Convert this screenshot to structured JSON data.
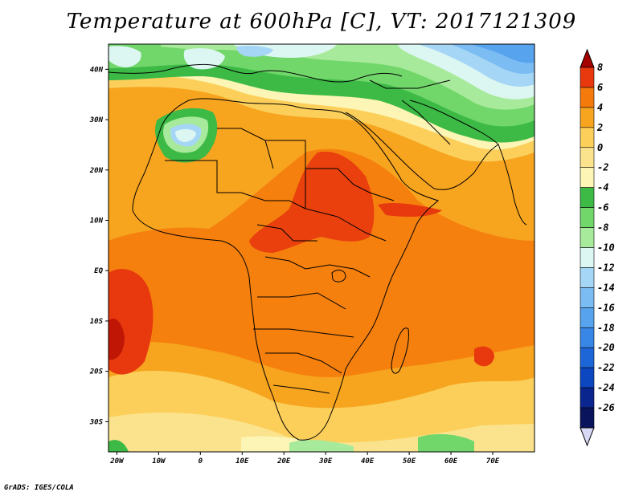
{
  "title": "Temperature at 600hPa [C], VT: 2017121309",
  "credit": "GrADS: IGES/COLA",
  "map": {
    "lon_labels": [
      "20W",
      "10W",
      "0",
      "10E",
      "20E",
      "30E",
      "40E",
      "50E",
      "60E",
      "70E"
    ],
    "lat_labels": [
      "40N",
      "30N",
      "20N",
      "10N",
      "EQ",
      "10S",
      "20S",
      "30S"
    ],
    "lon_range": [
      -22,
      80
    ],
    "lat_range": [
      -36,
      45
    ]
  },
  "colorbar": {
    "levels": [
      "8",
      "6",
      "4",
      "2",
      "0",
      "-2",
      "-4",
      "-6",
      "-8",
      "-10",
      "-12",
      "-14",
      "-16",
      "-18",
      "-20",
      "-22",
      "-24",
      "-26"
    ],
    "colors": [
      "#a40000",
      "#e8380e",
      "#f47a0c",
      "#f7a41f",
      "#fbcf5a",
      "#fbe38e",
      "#fdf5b5",
      "#3cba45",
      "#72d76b",
      "#a8ea9b",
      "#dcf6f2",
      "#a6d6f6",
      "#7bbdf3",
      "#57a3ee",
      "#3886e6",
      "#1d66d8",
      "#0d47c0",
      "#0a258e",
      "#09145d",
      "#d8d8f4"
    ]
  }
}
